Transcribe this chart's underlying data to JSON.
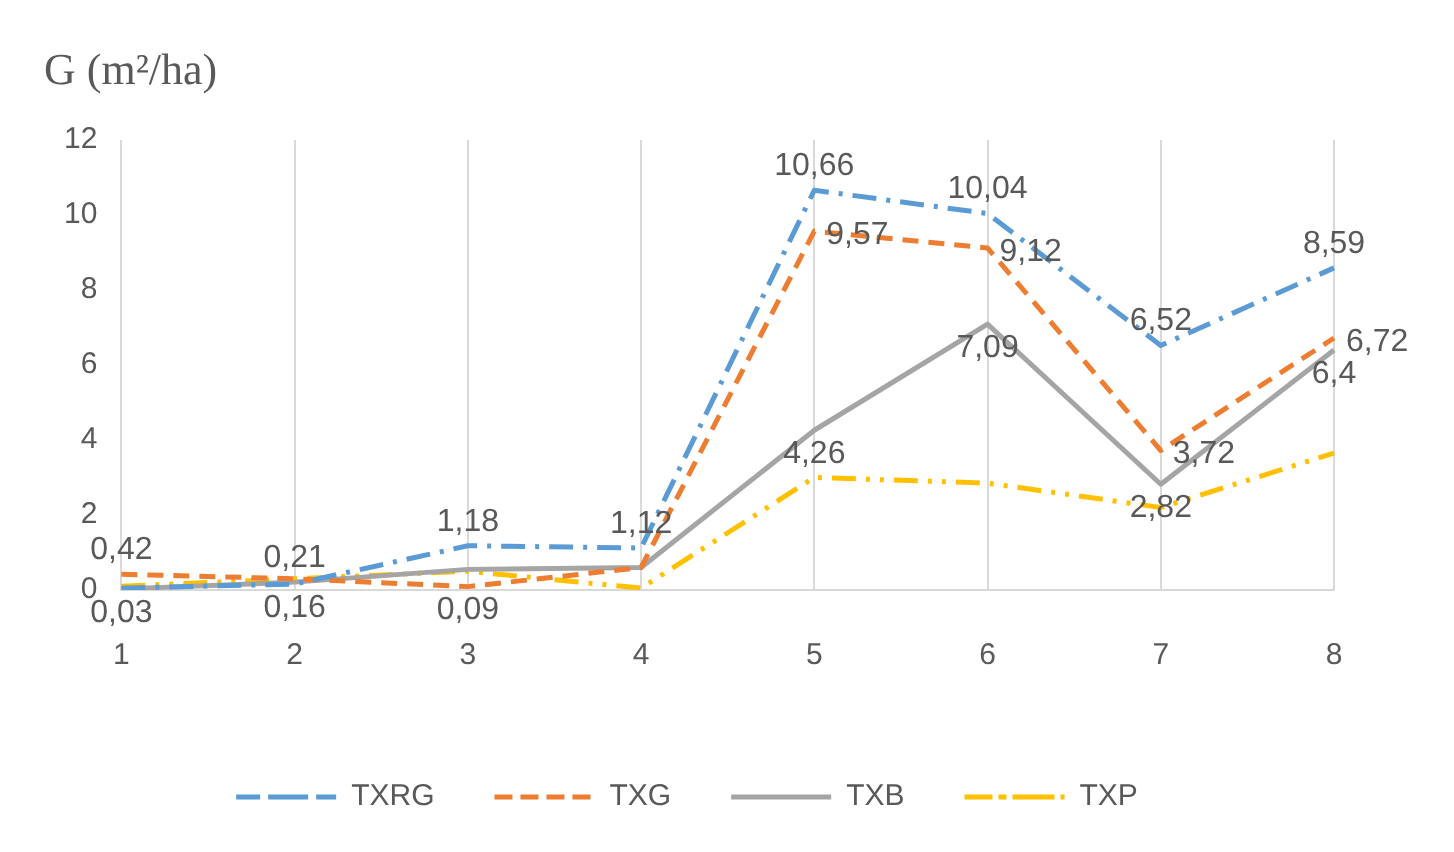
{
  "chart_data": {
    "type": "line",
    "ylabel": "G (m²/ha)",
    "categories": [
      "1",
      "2",
      "3",
      "4",
      "5",
      "6",
      "7",
      "8"
    ],
    "series": [
      {
        "name": "TXRG",
        "color": "#5b9bd5",
        "line_style": "dashdot",
        "values": [
          0.05,
          0.16,
          1.18,
          1.12,
          10.66,
          10.04,
          6.52,
          8.59
        ],
        "value_labels": [
          null,
          "0,16",
          "1,18",
          "1,12",
          "10,66",
          "10,04",
          "6,52",
          "8,59"
        ]
      },
      {
        "name": "TXG",
        "color": "#ed7d31",
        "line_style": "dashed",
        "values": [
          0.42,
          0.3,
          0.09,
          0.6,
          9.57,
          9.12,
          3.72,
          6.72
        ],
        "value_labels": [
          "0,42",
          null,
          "0,09",
          null,
          "9,57",
          "9,12",
          "3,72",
          "6,72"
        ]
      },
      {
        "name": "TXB",
        "color": "#a5a5a5",
        "line_style": "solid",
        "values": [
          0.03,
          0.21,
          0.55,
          0.6,
          4.26,
          7.09,
          2.82,
          6.4
        ],
        "value_labels": [
          "0,03",
          "0,21",
          null,
          null,
          "4,26",
          "7,09",
          "2,82",
          "6,4"
        ]
      },
      {
        "name": "TXP",
        "color": "#ffc000",
        "line_style": "dashdotdot",
        "values": [
          0.1,
          0.3,
          0.5,
          0.05,
          3.0,
          2.85,
          2.2,
          3.65
        ]
      }
    ],
    "ylim": [
      0,
      12
    ],
    "yticks": [
      0,
      2,
      4,
      6,
      8,
      10,
      12
    ],
    "grid": "x",
    "legend": "bottom",
    "marker": "none"
  }
}
